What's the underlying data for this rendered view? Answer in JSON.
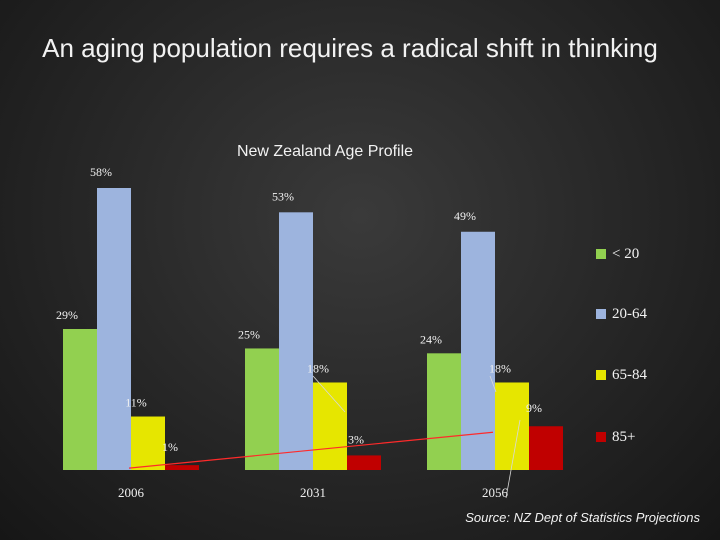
{
  "slide": {
    "title": "An aging population requires a radical shift in thinking",
    "source": "Source: NZ Dept of Statistics Projections"
  },
  "colors": {
    "under_20": "#92d050",
    "age_20_64": "#9db4de",
    "age_65_84": "#e6e600",
    "age_85_plus": "#c00000",
    "trend_line": "#ff2a2a"
  },
  "chart_data": {
    "type": "bar",
    "title": "New Zealand Age Profile",
    "categories": [
      "2006",
      "2031",
      "2056"
    ],
    "series": [
      {
        "name": "< 20",
        "values": [
          29,
          25,
          24
        ],
        "labels": [
          "29%",
          "25%",
          "24%"
        ],
        "color": "#92d050"
      },
      {
        "name": "20-64",
        "values": [
          58,
          53,
          49
        ],
        "labels": [
          "58%",
          "53%",
          "49%"
        ],
        "color": "#9db4de"
      },
      {
        "name": "65-84",
        "values": [
          11,
          18,
          18
        ],
        "labels": [
          "11%",
          "18%",
          "18%"
        ],
        "color": "#e6e600"
      },
      {
        "name": "85+",
        "values": [
          1,
          3,
          9
        ],
        "labels": [
          "1%",
          "3%",
          "9%"
        ],
        "color": "#c00000"
      }
    ],
    "ylim": [
      0,
      60
    ],
    "legend": "right",
    "grid": false
  }
}
